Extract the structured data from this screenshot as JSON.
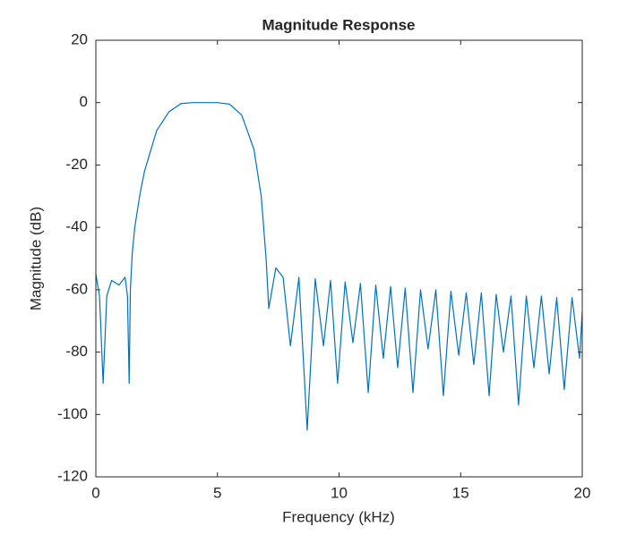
{
  "chart_data": {
    "type": "line",
    "title": "Magnitude Response",
    "xlabel": "Frequency (kHz)",
    "ylabel": "Magnitude (dB)",
    "x": [
      0,
      0.15,
      0.3,
      0.45,
      0.65,
      0.95,
      1.2,
      1.3,
      1.37,
      1.42,
      1.5,
      1.6,
      1.8,
      2,
      2.5,
      3,
      3.5,
      4,
      4.5,
      5,
      5.5,
      6,
      6.5,
      6.8,
      7.0,
      7.11,
      7.4,
      7.7,
      8.0,
      8.35,
      8.69,
      9.02,
      9.36,
      9.65,
      9.94,
      10.25,
      10.57,
      10.88,
      11.2,
      11.51,
      11.82,
      12.12,
      12.41,
      12.72,
      13.04,
      13.35,
      13.66,
      13.98,
      14.29,
      14.6,
      14.92,
      15.23,
      15.54,
      15.85,
      16.17,
      16.46,
      16.76,
      17.07,
      17.38,
      17.7,
      18.01,
      18.32,
      18.64,
      18.95,
      19.26,
      19.58,
      19.89,
      20
    ],
    "series": [
      {
        "color": "#0072bd",
        "values": [
          -55,
          -62,
          -90,
          -62,
          -57,
          -58.5,
          -56,
          -62,
          -90,
          -60,
          -48,
          -40,
          -30,
          -22,
          -9,
          -3,
          -0.3,
          0,
          0,
          0,
          -0.5,
          -4,
          -15,
          -30,
          -50,
          -66,
          -53,
          -56,
          -78,
          -56,
          -105,
          -56.5,
          -78,
          -57,
          -90,
          -57.5,
          -77,
          -58,
          -93,
          -58.5,
          -82,
          -59,
          -85,
          -59.5,
          -93,
          -60,
          -79,
          -60,
          -94,
          -60.5,
          -81,
          -61,
          -84,
          -61,
          -94,
          -61.5,
          -80,
          -62,
          -97,
          -62,
          -85,
          -62,
          -87,
          -62.5,
          -92,
          -62.5,
          -82,
          -67
        ]
      }
    ],
    "xlim": [
      0,
      20
    ],
    "xticks": [
      0,
      5,
      10,
      15,
      20
    ],
    "ylim": [
      -120,
      20
    ],
    "yticks": [
      -120,
      -100,
      -80,
      -60,
      -40,
      -20,
      0,
      20
    ],
    "grid": false
  }
}
